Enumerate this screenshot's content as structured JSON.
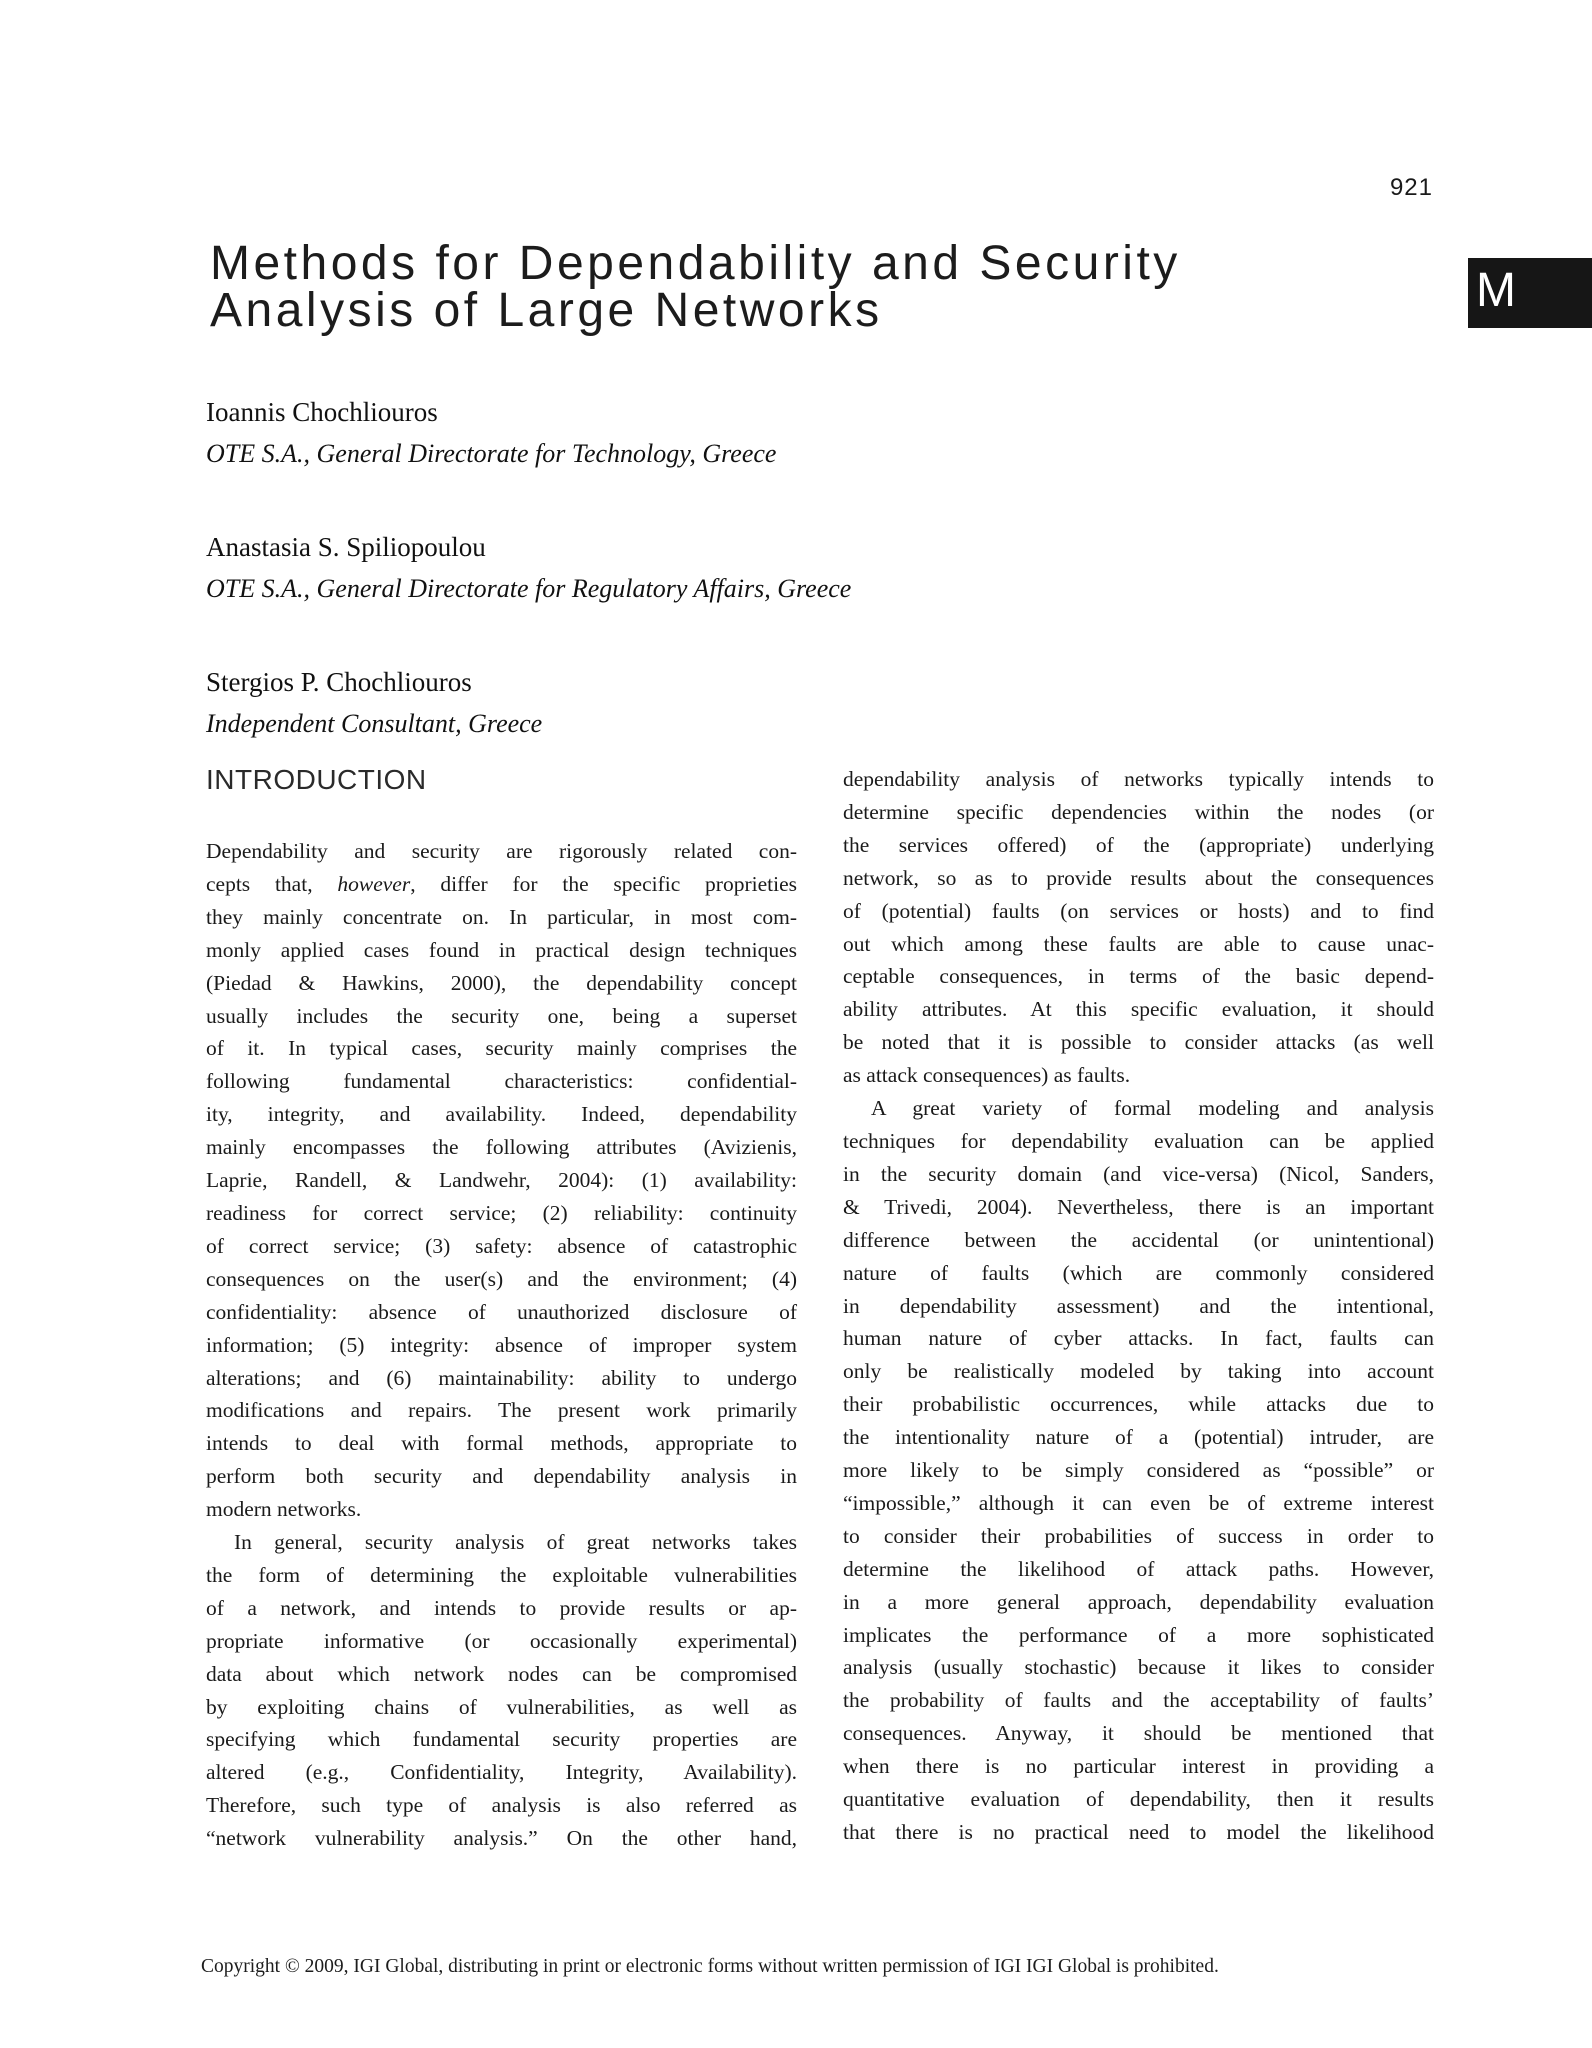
{
  "page": {
    "folio": "921",
    "tab_letter": "M",
    "tab_bg_color": "#161616",
    "text_color": "#1a1a1a"
  },
  "title": {
    "line1": "Methods for Dependability and Security",
    "line2": "Analysis of Large Networks"
  },
  "authors": [
    {
      "name": "Ioannis Chochliouros",
      "affiliation": "OTE S.A., General Directorate for Technology, Greece"
    },
    {
      "name": "Anastasia S. Spiliopoulou",
      "affiliation": "OTE S.A., General Directorate for Regulatory Affairs, Greece"
    },
    {
      "name": "Stergios P. Chochliouros",
      "affiliation": "Independent Consultant, Greece"
    }
  ],
  "sections": {
    "intro_heading": "INTRODUCTION"
  },
  "body": {
    "left_column": [
      {
        "indent": false,
        "last_flush": false,
        "lines": [
          "Dependability and security are rigorously related con-",
          "cepts that, <i>however</i>, differ for the specific proprieties",
          "they mainly concentrate on. In particular, in most com-",
          "monly applied cases found in practical design techniques",
          "(Piedad & Hawkins, 2000), the dependability concept",
          "usually includes the security one, being a superset",
          "of it. In typical cases, security mainly comprises the",
          "following fundamental characteristics: confidential-",
          "ity, integrity, and availability. Indeed, dependability",
          "mainly encompasses the following attributes (Avizienis,",
          "Laprie, Randell, & Landwehr, 2004): (1) availability:",
          "readiness for correct service; (2) reliability: continuity",
          "of correct service; (3) safety: absence of catastrophic",
          "consequences on the user(s) and the environment; (4)",
          "confidentiality: absence of unauthorized disclosure of",
          "information; (5) integrity: absence of improper system",
          "alterations; and (6) maintainability: ability to undergo",
          "modifications and repairs. The present work primarily",
          "intends to deal with formal methods, appropriate to",
          "perform both security and dependability analysis in",
          "modern networks."
        ]
      },
      {
        "indent": true,
        "last_flush": true,
        "lines": [
          "In general, security analysis of great networks takes",
          "the form of determining the exploitable vulnerabilities",
          "of a network, and intends to provide results or ap-",
          "propriate informative (or occasionally experimental)",
          "data about which network nodes can be compromised",
          "by exploiting chains of vulnerabilities, as well as",
          "specifying which fundamental security properties are",
          "altered (e.g., Confidentiality, Integrity, Availability).",
          "Therefore, such type of analysis is also referred as",
          "“network vulnerability analysis.” On the other hand,"
        ]
      }
    ],
    "right_column": [
      {
        "indent": false,
        "last_flush": false,
        "lines": [
          "dependability analysis of networks typically intends to",
          "determine specific dependencies within the nodes (or",
          "the services offered) of the (appropriate) underlying",
          "network, so as to provide results about the consequences",
          "of (potential) faults (on services or hosts) and to find",
          "out which among these faults are able to cause unac-",
          "ceptable consequences, in terms of the basic depend-",
          "ability attributes. At this specific evaluation, it should",
          "be noted that it is possible to consider attacks (as well",
          "as attack consequences) as faults."
        ]
      },
      {
        "indent": true,
        "last_flush": true,
        "lines": [
          "A great variety of formal modeling and analysis",
          "techniques for dependability evaluation can be applied",
          "in the security domain (and vice-versa) (Nicol, Sanders,",
          "& Trivedi, 2004). Nevertheless, there is an important",
          "difference between the accidental (or unintentional)",
          "nature of faults (which are commonly considered",
          "in dependability assessment) and the intentional,",
          "human nature of cyber attacks. In fact, faults can",
          "only be realistically modeled by taking into account",
          "their probabilistic occurrences, while attacks due to",
          "the intentionality nature of a (potential) intruder, are",
          "more likely to be simply considered as “possible” or",
          "“impossible,” although it can even be of extreme interest",
          "to consider their probabilities of success in order to",
          "determine the likelihood of attack paths. However,",
          "in a more general approach, dependability evaluation",
          "implicates the performance of a more sophisticated",
          "analysis (usually stochastic) because it likes to consider",
          "the probability of faults and the acceptability of faults’",
          "consequences. Anyway, it should be mentioned that",
          "when there is no particular interest in providing a",
          "quantitative evaluation of dependability, then it results",
          "that there is no practical need to model the likelihood"
        ]
      }
    ]
  },
  "footer": {
    "text": "Copyright © 2009, IGI Global, distributing in print or electronic forms without written permission of IGI IGI Global is prohibited."
  }
}
